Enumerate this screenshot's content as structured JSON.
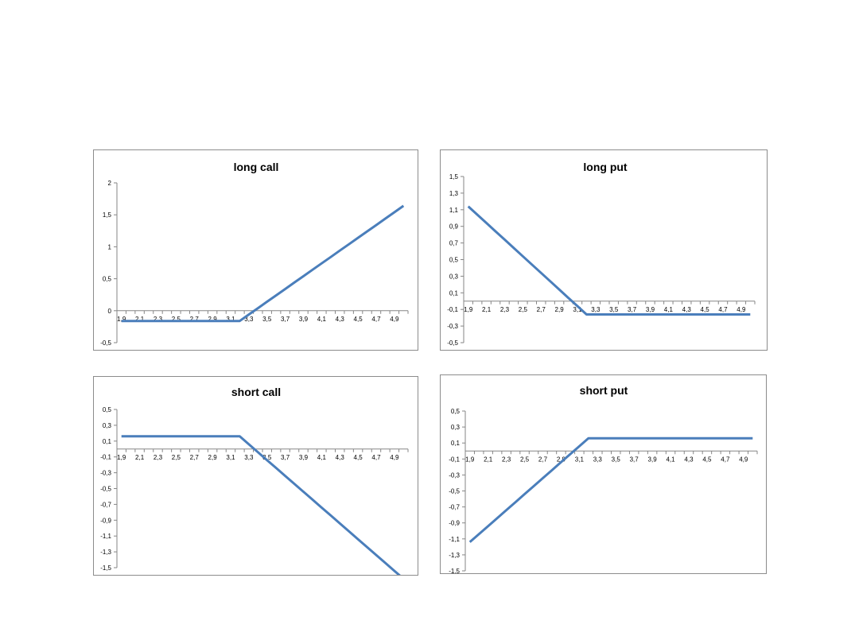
{
  "line_color": "#4a7ebb",
  "chart_data": [
    {
      "type": "line",
      "title": "long call",
      "x": [
        "1,9",
        "2",
        "2,1",
        "2,2",
        "2,3",
        "2,4",
        "2,5",
        "2,6",
        "2,7",
        "2,8",
        "2,9",
        "3",
        "3,1",
        "3,2",
        "3,3",
        "3,4",
        "3,5",
        "3,6",
        "3,7",
        "3,8",
        "3,9",
        "4",
        "4,1",
        "4,2",
        "4,3",
        "4,4",
        "4,5",
        "4,6",
        "4,7",
        "4,8",
        "4,9",
        "5"
      ],
      "x_tick_labels": [
        "1,9",
        "2,1",
        "2,3",
        "2,5",
        "2,7",
        "2,9",
        "3,1",
        "3,3",
        "3,5",
        "3,7",
        "3,9",
        "4,1",
        "4,3",
        "4,5",
        "4,7",
        "4,9"
      ],
      "y_tick_labels": [
        "2",
        "1,5",
        "1",
        "0,5",
        "0",
        "-0,5"
      ],
      "ylim": [
        -0.5,
        2
      ],
      "series": [
        {
          "values": [
            -0.16,
            -0.16,
            -0.16,
            -0.16,
            -0.16,
            -0.16,
            -0.16,
            -0.16,
            -0.16,
            -0.16,
            -0.16,
            -0.16,
            -0.16,
            -0.16,
            -0.06,
            0.04,
            0.14,
            0.24,
            0.34,
            0.44,
            0.54,
            0.64,
            0.74,
            0.84,
            0.94,
            1.04,
            1.14,
            1.24,
            1.34,
            1.44,
            1.54,
            1.64
          ]
        }
      ]
    },
    {
      "type": "line",
      "title": "long put",
      "x": [
        "1,9",
        "2",
        "2,1",
        "2,2",
        "2,3",
        "2,4",
        "2,5",
        "2,6",
        "2,7",
        "2,8",
        "2,9",
        "3",
        "3,1",
        "3,2",
        "3,3",
        "3,4",
        "3,5",
        "3,6",
        "3,7",
        "3,8",
        "3,9",
        "4",
        "4,1",
        "4,2",
        "4,3",
        "4,4",
        "4,5",
        "4,6",
        "4,7",
        "4,8",
        "4,9",
        "5"
      ],
      "x_tick_labels": [
        "1,9",
        "2,1",
        "2,3",
        "2,5",
        "2,7",
        "2,9",
        "3,1",
        "3,3",
        "3,5",
        "3,7",
        "3,9",
        "4,1",
        "4,3",
        "4,5",
        "4,7",
        "4,9"
      ],
      "y_tick_labels": [
        "1,5",
        "1,3",
        "1,1",
        "0,9",
        "0,7",
        "0,5",
        "0,3",
        "0,1",
        "-0,1",
        "-0,3",
        "-0,5"
      ],
      "ylim": [
        -0.5,
        1.5
      ],
      "series": [
        {
          "values": [
            1.14,
            1.04,
            0.94,
            0.84,
            0.74,
            0.64,
            0.54,
            0.44,
            0.34,
            0.24,
            0.14,
            0.04,
            -0.06,
            -0.16,
            -0.16,
            -0.16,
            -0.16,
            -0.16,
            -0.16,
            -0.16,
            -0.16,
            -0.16,
            -0.16,
            -0.16,
            -0.16,
            -0.16,
            -0.16,
            -0.16,
            -0.16,
            -0.16,
            -0.16,
            -0.16
          ]
        }
      ]
    },
    {
      "type": "line",
      "title": "short call",
      "x": [
        "1,9",
        "2",
        "2,1",
        "2,2",
        "2,3",
        "2,4",
        "2,5",
        "2,6",
        "2,7",
        "2,8",
        "2,9",
        "3",
        "3,1",
        "3,2",
        "3,3",
        "3,4",
        "3,5",
        "3,6",
        "3,7",
        "3,8",
        "3,9",
        "4",
        "4,1",
        "4,2",
        "4,3",
        "4,4",
        "4,5",
        "4,6",
        "4,7",
        "4,8",
        "4,9",
        "5"
      ],
      "x_tick_labels": [
        "1,9",
        "2,1",
        "2,3",
        "2,5",
        "2,7",
        "2,9",
        "3,1",
        "3,3",
        "3,5",
        "3,7",
        "3,9",
        "4,1",
        "4,3",
        "4,5",
        "4,7",
        "4,9"
      ],
      "y_tick_labels": [
        "0,5",
        "0,3",
        "0,1",
        "-0,1",
        "-0,3",
        "-0,5",
        "-0,7",
        "-0,9",
        "-1,1",
        "-1,3",
        "-1,5"
      ],
      "ylim": [
        -1.5,
        0.5
      ],
      "series": [
        {
          "values": [
            0.16,
            0.16,
            0.16,
            0.16,
            0.16,
            0.16,
            0.16,
            0.16,
            0.16,
            0.16,
            0.16,
            0.16,
            0.16,
            0.16,
            0.06,
            -0.04,
            -0.14,
            -0.24,
            -0.34,
            -0.44,
            -0.54,
            -0.64,
            -0.74,
            -0.84,
            -0.94,
            -1.04,
            -1.14,
            -1.24,
            -1.34,
            -1.44,
            -1.54,
            -1.64
          ]
        }
      ]
    },
    {
      "type": "line",
      "title": "short put",
      "x": [
        "1,9",
        "2",
        "2,1",
        "2,2",
        "2,3",
        "2,4",
        "2,5",
        "2,6",
        "2,7",
        "2,8",
        "2,9",
        "3",
        "3,1",
        "3,2",
        "3,3",
        "3,4",
        "3,5",
        "3,6",
        "3,7",
        "3,8",
        "3,9",
        "4",
        "4,1",
        "4,2",
        "4,3",
        "4,4",
        "4,5",
        "4,6",
        "4,7",
        "4,8",
        "4,9",
        "5"
      ],
      "x_tick_labels": [
        "1,9",
        "2,1",
        "2,3",
        "2,5",
        "2,7",
        "2,9",
        "3,1",
        "3,3",
        "3,5",
        "3,7",
        "3,9",
        "4,1",
        "4,3",
        "4,5",
        "4,7",
        "4,9"
      ],
      "y_tick_labels": [
        "0,5",
        "0,3",
        "0,1",
        "-0,1",
        "-0,3",
        "-0,5",
        "-0,7",
        "-0,9",
        "-1,1",
        "-1,3",
        "-1,5"
      ],
      "ylim": [
        -1.5,
        0.5
      ],
      "series": [
        {
          "values": [
            -1.14,
            -1.04,
            -0.94,
            -0.84,
            -0.74,
            -0.64,
            -0.54,
            -0.44,
            -0.34,
            -0.24,
            -0.14,
            -0.04,
            0.06,
            0.16,
            0.16,
            0.16,
            0.16,
            0.16,
            0.16,
            0.16,
            0.16,
            0.16,
            0.16,
            0.16,
            0.16,
            0.16,
            0.16,
            0.16,
            0.16,
            0.16,
            0.16,
            0.16
          ]
        }
      ]
    }
  ]
}
